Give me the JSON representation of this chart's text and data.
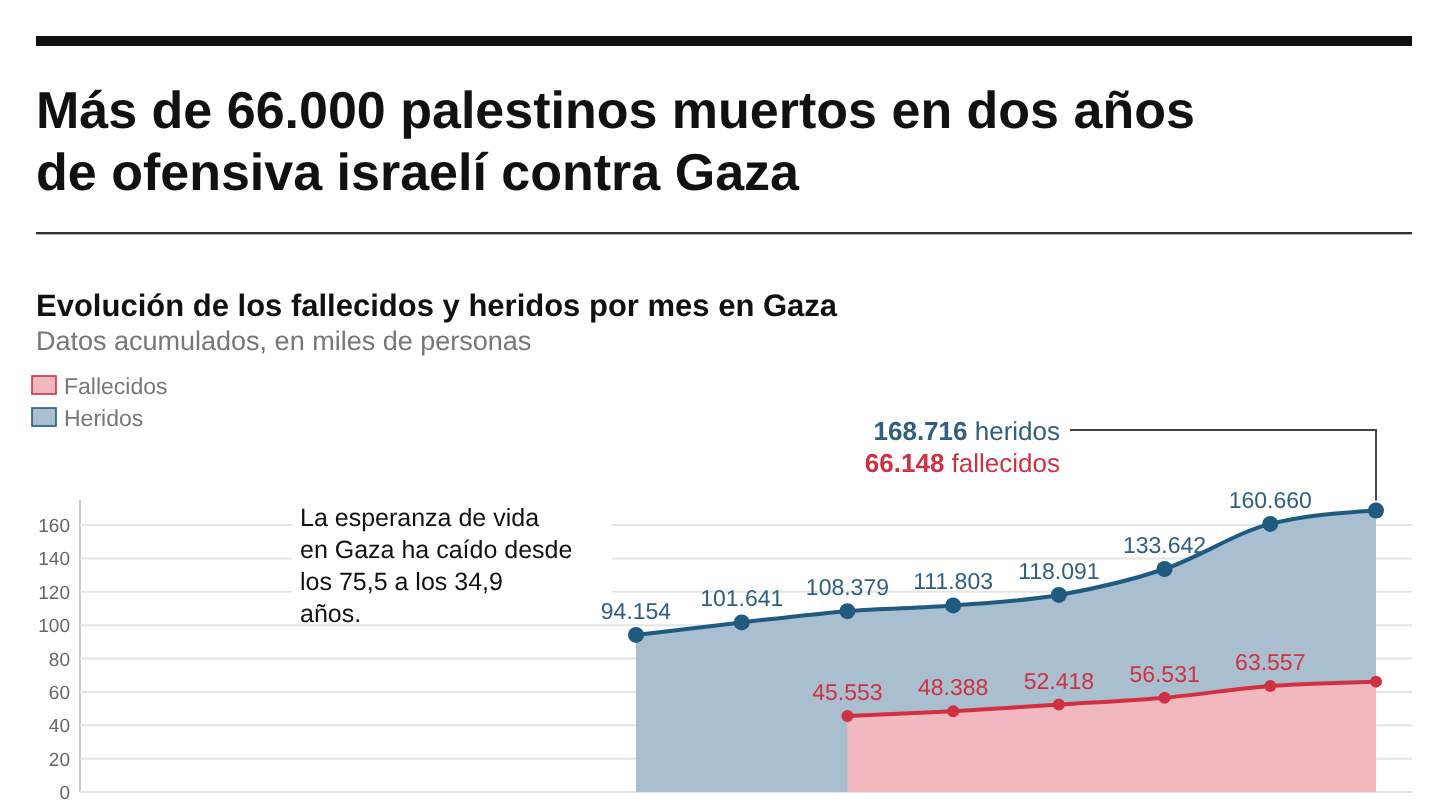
{
  "chart_data": {
    "type": "area",
    "title": "Más de 66.000 palestinos muertos en dos años de ofensiva israelí contra Gaza",
    "subtitle": "Evolución de los fallecidos y heridos por mes en Gaza",
    "categories": [
      null,
      null,
      null,
      null,
      null,
      null,
      null,
      null
    ],
    "series": [
      {
        "name": "Fallecidos",
        "color": "#f2b8c0",
        "values": [
          null,
          null,
          45.553,
          48.388,
          52.418,
          56.531,
          63.557,
          66.148
        ],
        "value_labels": [
          null,
          null,
          "45.553",
          "48.388",
          "52.418",
          "56.531",
          "63.557",
          null
        ]
      },
      {
        "name": "Heridos",
        "color": "#a9bfcf",
        "values": [
          94.154,
          101.641,
          108.379,
          111.803,
          118.091,
          133.642,
          160.66,
          168.716
        ],
        "value_labels": [
          "94.154",
          "101.641",
          "108.379",
          "111.803",
          "118.091",
          "133.642",
          "160.660",
          null
        ]
      }
    ],
    "ylim": [
      0,
      175
    ],
    "yticks": [
      0,
      20,
      40,
      60,
      80,
      100,
      120,
      140,
      160
    ],
    "grid": "y",
    "legend": "top left",
    "marker": "circle",
    "annotations": [
      "Datos acumulados, en miles de personas",
      "La esperanza de vida en Gaza ha caído desde los 75,5 a los 34,9 años.",
      "168.716 heridos",
      "66.148 fallecidos"
    ]
  }
}
